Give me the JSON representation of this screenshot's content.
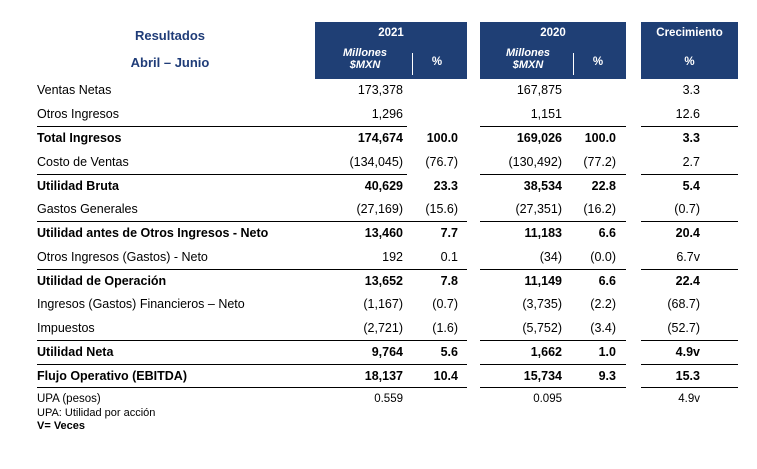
{
  "header": {
    "title": "Resultados",
    "subtitle": "Abril – Junio",
    "col2021": {
      "year": "2021",
      "units_line1": "Millones",
      "units_line2": "$MXN",
      "pct": "%"
    },
    "col2020": {
      "year": "2020",
      "units_line1": "Millones",
      "units_line2": "$MXN",
      "pct": "%"
    },
    "growth": {
      "label": "Crecimiento",
      "pct": "%"
    }
  },
  "rows": [
    {
      "label": "Ventas Netas",
      "v2021": "173,378",
      "p2021": "",
      "v2020": "167,875",
      "p2020": "",
      "growth": "3.3",
      "bold": false
    },
    {
      "label": "Otros Ingresos",
      "v2021": "1,296",
      "p2021": "",
      "v2020": "1,151",
      "p2020": "",
      "growth": "12.6",
      "bold": false
    },
    {
      "label": "Total Ingresos",
      "v2021": "174,674",
      "p2021": "100.0",
      "v2020": "169,026",
      "p2020": "100.0",
      "growth": "3.3",
      "bold": true
    },
    {
      "label": "Costo de Ventas",
      "v2021": "(134,045)",
      "p2021": "(76.7)",
      "v2020": "(130,492)",
      "p2020": "(77.2)",
      "growth": "2.7",
      "bold": false
    },
    {
      "label": "Utilidad Bruta",
      "v2021": "40,629",
      "p2021": "23.3",
      "v2020": "38,534",
      "p2020": "22.8",
      "growth": "5.4",
      "bold": true
    },
    {
      "label": "Gastos Generales",
      "v2021": "(27,169)",
      "p2021": "(15.6)",
      "v2020": "(27,351)",
      "p2020": "(16.2)",
      "growth": "(0.7)",
      "bold": false
    },
    {
      "label": "Utilidad antes de Otros Ingresos - Neto",
      "v2021": "13,460",
      "p2021": "7.7",
      "v2020": "11,183",
      "p2020": "6.6",
      "growth": "20.4",
      "bold": true
    },
    {
      "label": "Otros Ingresos (Gastos) - Neto",
      "v2021": "192",
      "p2021": "0.1",
      "v2020": "(34)",
      "p2020": "(0.0)",
      "growth": "6.7v",
      "bold": false
    },
    {
      "label": "Utilidad de Operación",
      "v2021": "13,652",
      "p2021": "7.8",
      "v2020": "11,149",
      "p2020": "6.6",
      "growth": "22.4",
      "bold": true
    },
    {
      "label": "Ingresos (Gastos)  Financieros – Neto",
      "v2021": "(1,167)",
      "p2021": "(0.7)",
      "v2020": "(3,735)",
      "p2020": "(2.2)",
      "growth": "(68.7)",
      "bold": false
    },
    {
      "label": "Impuestos",
      "v2021": "(2,721)",
      "p2021": "(1.6)",
      "v2020": "(5,752)",
      "p2020": "(3.4)",
      "growth": "(52.7)",
      "bold": false
    },
    {
      "label": "Utilidad Neta",
      "v2021": "9,764",
      "p2021": "5.6",
      "v2020": "1,662",
      "p2020": "1.0",
      "growth": "4.9v",
      "bold": true
    },
    {
      "label": "Flujo Operativo (EBITDA)",
      "v2021": "18,137",
      "p2021": "10.4",
      "v2020": "15,734",
      "p2020": "9.3",
      "growth": "15.3",
      "bold": true
    },
    {
      "label": "UPA (pesos)",
      "v2021": "0.559",
      "p2021": "",
      "v2020": "0.095",
      "p2020": "",
      "growth": "4.9v",
      "bold": false
    }
  ],
  "footnotes": {
    "upa": "UPA: Utilidad por acción",
    "veces": "V= Veces"
  }
}
